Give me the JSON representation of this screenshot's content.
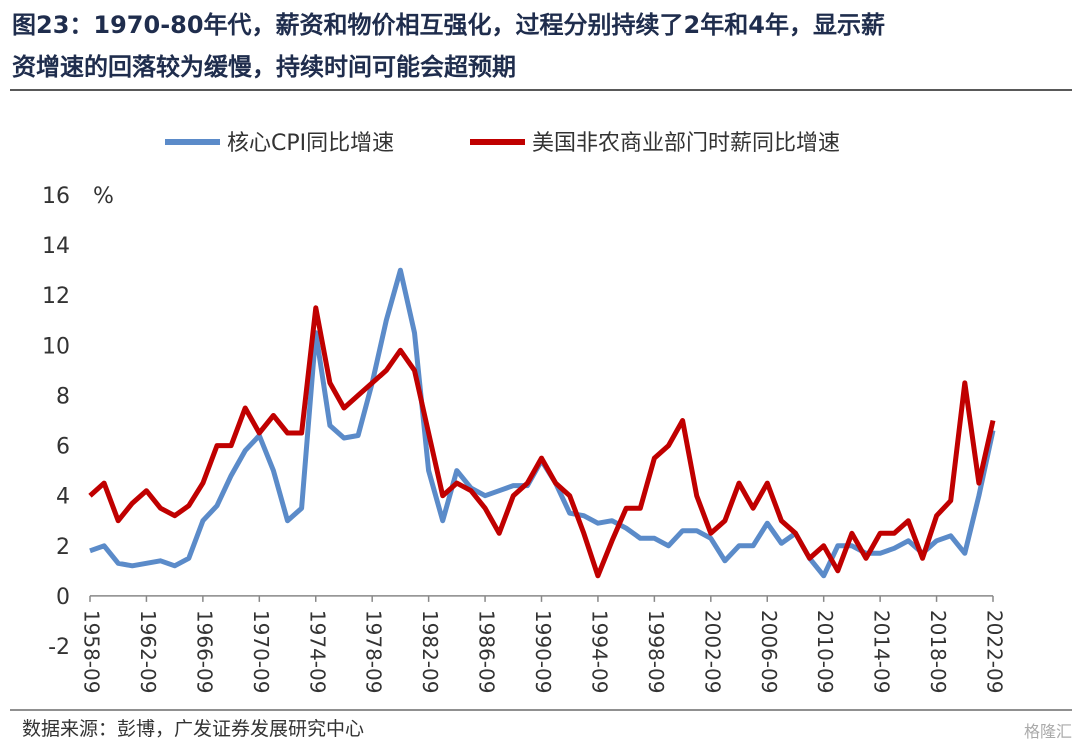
{
  "chart_data": {
    "type": "line",
    "title_lines": [
      "图23：1970-80年代，薪资和物价相互强化，过程分别持续了2年和4年，显示薪",
      "资增速的回落较为缓慢，持续时间可能会超预期"
    ],
    "y_unit": "%",
    "source": "数据来源：彭博，广发证券发展研究中心",
    "watermark": "格隆汇",
    "x": [
      "1958-09",
      "1959-09",
      "1960-09",
      "1961-09",
      "1962-09",
      "1963-09",
      "1964-09",
      "1965-09",
      "1966-09",
      "1967-09",
      "1968-09",
      "1969-09",
      "1970-09",
      "1971-09",
      "1972-09",
      "1973-09",
      "1974-09",
      "1975-09",
      "1976-09",
      "1977-09",
      "1978-09",
      "1979-09",
      "1980-09",
      "1981-09",
      "1982-09",
      "1983-09",
      "1984-09",
      "1985-09",
      "1986-09",
      "1987-09",
      "1988-09",
      "1989-09",
      "1990-09",
      "1991-09",
      "1992-09",
      "1993-09",
      "1994-09",
      "1995-09",
      "1996-09",
      "1997-09",
      "1998-09",
      "1999-09",
      "2000-09",
      "2001-09",
      "2002-09",
      "2003-09",
      "2004-09",
      "2005-09",
      "2006-09",
      "2007-09",
      "2008-09",
      "2009-09",
      "2010-09",
      "2011-09",
      "2012-09",
      "2013-09",
      "2014-09",
      "2015-09",
      "2016-09",
      "2017-09",
      "2018-09",
      "2019-09",
      "2020-09",
      "2021-09",
      "2022-09"
    ],
    "xlim": [
      "1958-09",
      "2022-09"
    ],
    "xticks": [
      "1958-09",
      "1962-09",
      "1966-09",
      "1970-09",
      "1974-09",
      "1978-09",
      "1982-09",
      "1986-09",
      "1990-09",
      "1994-09",
      "1998-09",
      "2002-09",
      "2006-09",
      "2010-09",
      "2014-09",
      "2018-09",
      "2022-09"
    ],
    "ylim": [
      -2,
      16
    ],
    "yticks": [
      -2,
      0,
      2,
      4,
      6,
      8,
      10,
      12,
      14,
      16
    ],
    "legend": "top",
    "series": [
      {
        "name": "核心CPI同比增速",
        "color": "#5b8bc9",
        "values": [
          1.8,
          2.0,
          1.3,
          1.2,
          1.3,
          1.4,
          1.2,
          1.5,
          3.0,
          3.6,
          4.8,
          5.8,
          6.4,
          5.0,
          3.0,
          3.5,
          10.5,
          6.8,
          6.3,
          6.4,
          8.5,
          11.0,
          13.0,
          10.5,
          5.0,
          3.0,
          5.0,
          4.3,
          4.0,
          4.2,
          4.4,
          4.4,
          5.4,
          4.5,
          3.3,
          3.2,
          2.9,
          3.0,
          2.7,
          2.3,
          2.3,
          2.0,
          2.6,
          2.6,
          2.3,
          1.4,
          2.0,
          2.0,
          2.9,
          2.1,
          2.5,
          1.5,
          0.8,
          2.0,
          2.0,
          1.7,
          1.7,
          1.9,
          2.2,
          1.7,
          2.2,
          2.4,
          1.7,
          4.0,
          6.6
        ]
      },
      {
        "name": "美国非农商业部门时薪同比增速",
        "color": "#c00000",
        "values": [
          4.0,
          4.5,
          3.0,
          3.7,
          4.2,
          3.5,
          3.2,
          3.6,
          4.5,
          6.0,
          6.0,
          7.5,
          6.5,
          7.2,
          6.5,
          6.5,
          11.5,
          8.5,
          7.5,
          8.0,
          8.5,
          9.0,
          9.8,
          9.0,
          6.5,
          4.0,
          4.5,
          4.2,
          3.5,
          2.5,
          4.0,
          4.5,
          5.5,
          4.5,
          4.0,
          2.5,
          0.8,
          2.2,
          3.5,
          3.5,
          5.5,
          6.0,
          7.0,
          4.0,
          2.5,
          3.0,
          4.5,
          3.5,
          4.5,
          3.0,
          2.5,
          1.5,
          2.0,
          1.0,
          2.5,
          1.5,
          2.5,
          2.5,
          3.0,
          1.5,
          3.2,
          3.8,
          8.5,
          4.5,
          7.0
        ]
      }
    ]
  }
}
